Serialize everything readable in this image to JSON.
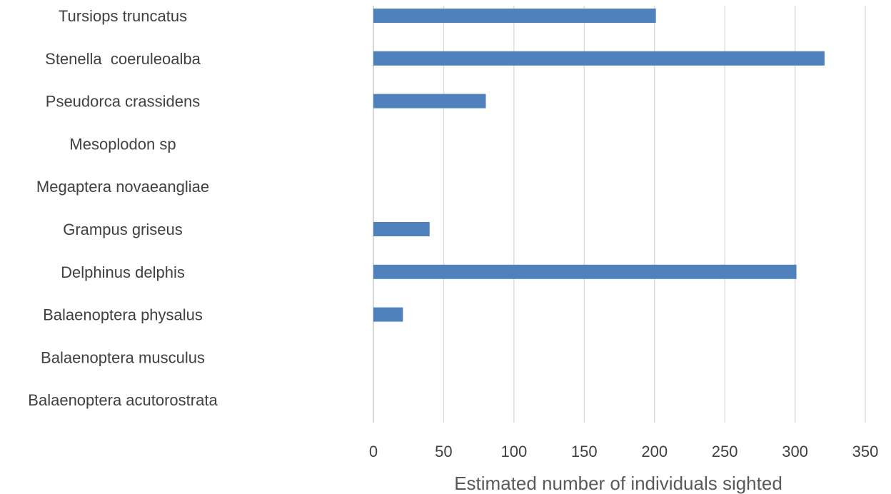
{
  "chart_data": {
    "type": "bar",
    "orientation": "horizontal",
    "title": "",
    "xlabel": "Estimated number of individuals sighted",
    "ylabel": "",
    "categories": [
      "Tursiops truncatus",
      "Stenella  coeruleoalba",
      "Pseudorca crassidens",
      "Mesoplodon sp",
      "Megaptera novaeangliae",
      "Grampus griseus",
      "Delphinus delphis",
      "Balaenoptera physalus",
      "Balaenoptera musculus",
      "Balaenoptera acutorostrata"
    ],
    "values": [
      201,
      321,
      80,
      0,
      0,
      40,
      301,
      21,
      0,
      0
    ],
    "xlim": [
      0,
      350
    ],
    "xticks": [
      "0",
      "50",
      "100",
      "150",
      "200",
      "250",
      "300",
      "350"
    ],
    "grid": "vertical",
    "legend": "none",
    "bar_color": "#4f81bd"
  }
}
